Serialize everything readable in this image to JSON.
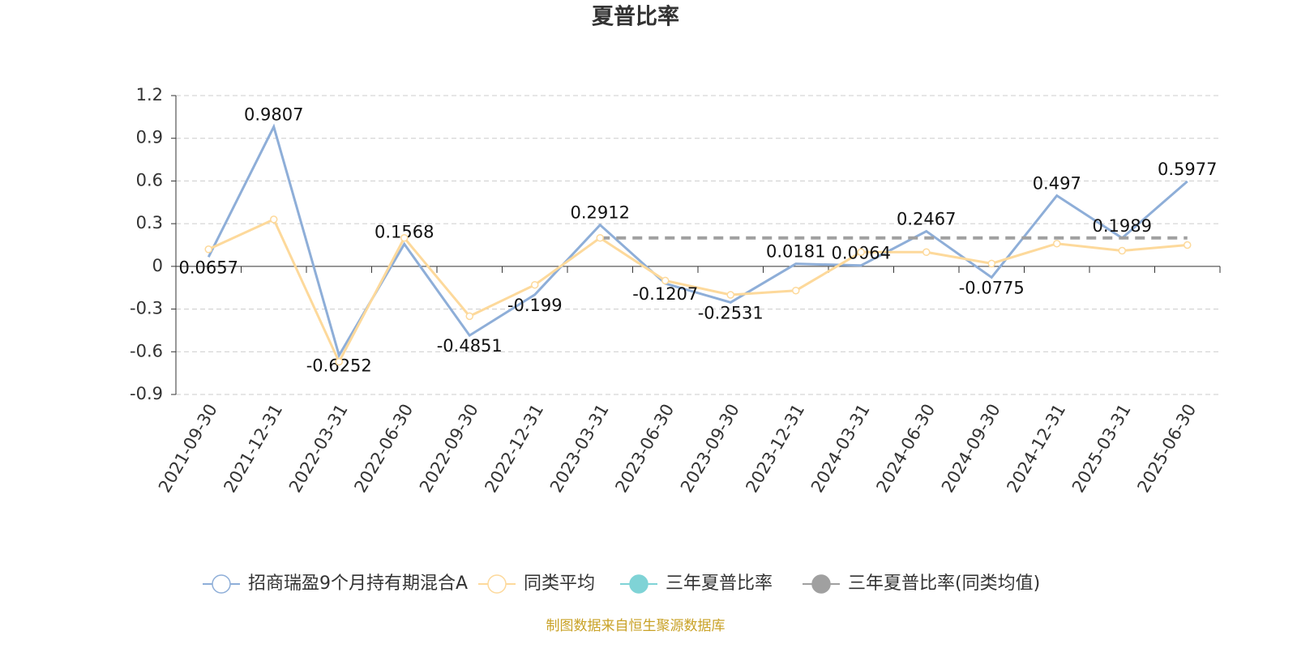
{
  "chart_data": {
    "type": "line",
    "title": "夏普比率",
    "categories": [
      "2021-09-30",
      "2021-12-31",
      "2022-03-31",
      "2022-06-30",
      "2022-09-30",
      "2022-12-31",
      "2023-03-31",
      "2023-06-30",
      "2023-09-30",
      "2023-12-31",
      "2024-03-31",
      "2024-06-30",
      "2024-09-30",
      "2024-12-31",
      "2025-03-31",
      "2025-06-30"
    ],
    "series": [
      {
        "name": "招商瑞盈9个月持有期混合A",
        "color": "#8eaed8",
        "symbol": "hollow",
        "show_labels": true,
        "values": [
          0.0657,
          0.9807,
          -0.6252,
          0.1568,
          -0.4851,
          -0.199,
          0.2912,
          -0.1207,
          -0.2531,
          0.0181,
          0.0064,
          0.2467,
          -0.0775,
          0.497,
          0.1989,
          0.5977
        ]
      },
      {
        "name": "同类平均",
        "color": "#fdd99b",
        "symbol": "hollow",
        "show_symbols": true,
        "values": [
          0.12,
          0.33,
          -0.67,
          0.2,
          -0.35,
          -0.13,
          0.2,
          -0.1,
          -0.2,
          -0.17,
          0.1,
          0.1,
          0.02,
          0.16,
          0.11,
          0.15
        ]
      },
      {
        "name": "三年夏普比率",
        "color": "#7fd3d6",
        "symbol": "filled",
        "values": [
          null,
          null,
          null,
          null,
          null,
          null,
          null,
          null,
          null,
          null,
          null,
          null,
          null,
          null,
          null,
          null
        ]
      },
      {
        "name": "三年夏普比率(同类均值)",
        "color": "#a0a0a0",
        "symbol": "filled",
        "line_style": "dashed",
        "values": [
          null,
          null,
          null,
          null,
          null,
          null,
          0.2,
          0.2,
          0.2,
          0.2,
          0.2,
          0.2,
          0.2,
          0.2,
          0.2,
          0.2
        ]
      }
    ],
    "ylim": [
      -0.9,
      1.2
    ],
    "yticks": [
      -0.9,
      -0.6,
      -0.3,
      0,
      0.3,
      0.6,
      0.9,
      1.2
    ],
    "grid": true,
    "legend": "bottom",
    "source": "制图数据来自恒生聚源数据库"
  }
}
